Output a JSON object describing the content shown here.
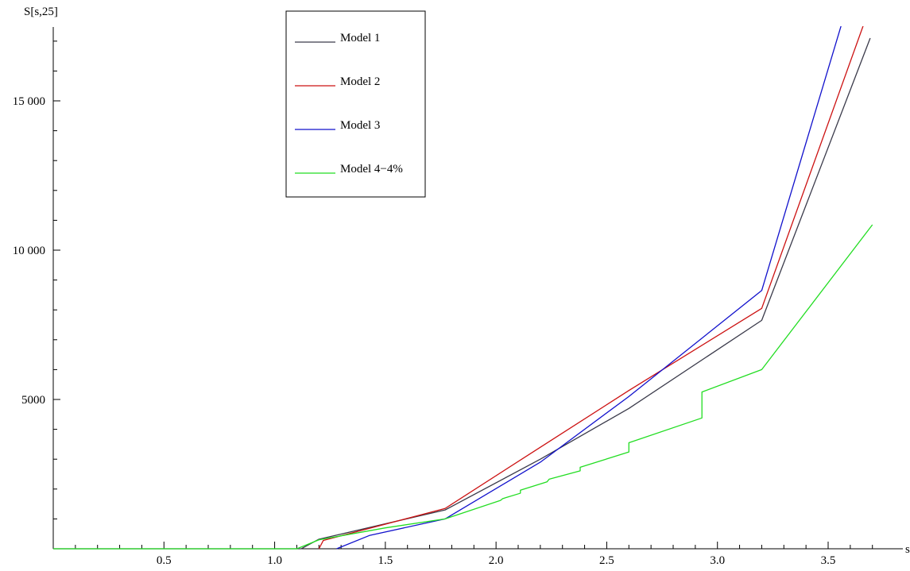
{
  "chart_data": {
    "type": "line",
    "title": "",
    "xlabel": "s",
    "ylabel": "S[s,25]",
    "xlim": [
      0,
      3.7
    ],
    "ylim": [
      0,
      17500
    ],
    "grid": false,
    "legend_position": "top-center",
    "x_ticks_major": [
      0.5,
      1.0,
      1.5,
      2.0,
      2.5,
      3.0,
      3.5
    ],
    "x_tick_labels": [
      "0.5",
      "1.0",
      "1.5",
      "2.0",
      "2.5",
      "3.0",
      "3.5"
    ],
    "y_ticks_major": [
      5000,
      10000,
      15000
    ],
    "y_tick_labels": [
      "5000",
      "10 000",
      "15 000"
    ],
    "series": [
      {
        "name": "Model 1",
        "color": "#3a3a4a",
        "points": [
          [
            0,
            0
          ],
          [
            1.12,
            0
          ],
          [
            1.2,
            320
          ],
          [
            1.77,
            1300
          ],
          [
            2.2,
            3000
          ],
          [
            2.6,
            4700
          ],
          [
            3.2,
            7650
          ],
          [
            3.69,
            17100
          ]
        ]
      },
      {
        "name": "Model 2",
        "color": "#cc1111",
        "points": [
          [
            1.2,
            0
          ],
          [
            1.22,
            280
          ],
          [
            1.77,
            1350
          ],
          [
            2.2,
            3400
          ],
          [
            2.6,
            5300
          ],
          [
            3.2,
            8050
          ],
          [
            3.66,
            17550
          ]
        ]
      },
      {
        "name": "Model 3",
        "color": "#1111cc",
        "points": [
          [
            1.28,
            0
          ],
          [
            1.43,
            450
          ],
          [
            1.77,
            1000
          ],
          [
            2.2,
            2900
          ],
          [
            2.6,
            5100
          ],
          [
            3.2,
            8650
          ],
          [
            3.56,
            17550
          ]
        ]
      },
      {
        "name": "Model 4−4%",
        "color": "#22dd22",
        "points": [
          [
            0,
            0
          ],
          [
            1.1,
            0
          ],
          [
            1.15,
            150
          ],
          [
            1.2,
            300
          ],
          [
            1.5,
            700
          ],
          [
            1.77,
            1000
          ],
          [
            2.02,
            1620
          ],
          [
            2.03,
            1680
          ],
          [
            2.11,
            1860
          ],
          [
            2.11,
            1960
          ],
          [
            2.23,
            2240
          ],
          [
            2.24,
            2330
          ],
          [
            2.38,
            2610
          ],
          [
            2.38,
            2730
          ],
          [
            2.6,
            3240
          ],
          [
            2.6,
            3550
          ],
          [
            2.93,
            4380
          ],
          [
            2.93,
            5250
          ],
          [
            3.2,
            6000
          ],
          [
            3.7,
            10850
          ]
        ]
      }
    ]
  }
}
